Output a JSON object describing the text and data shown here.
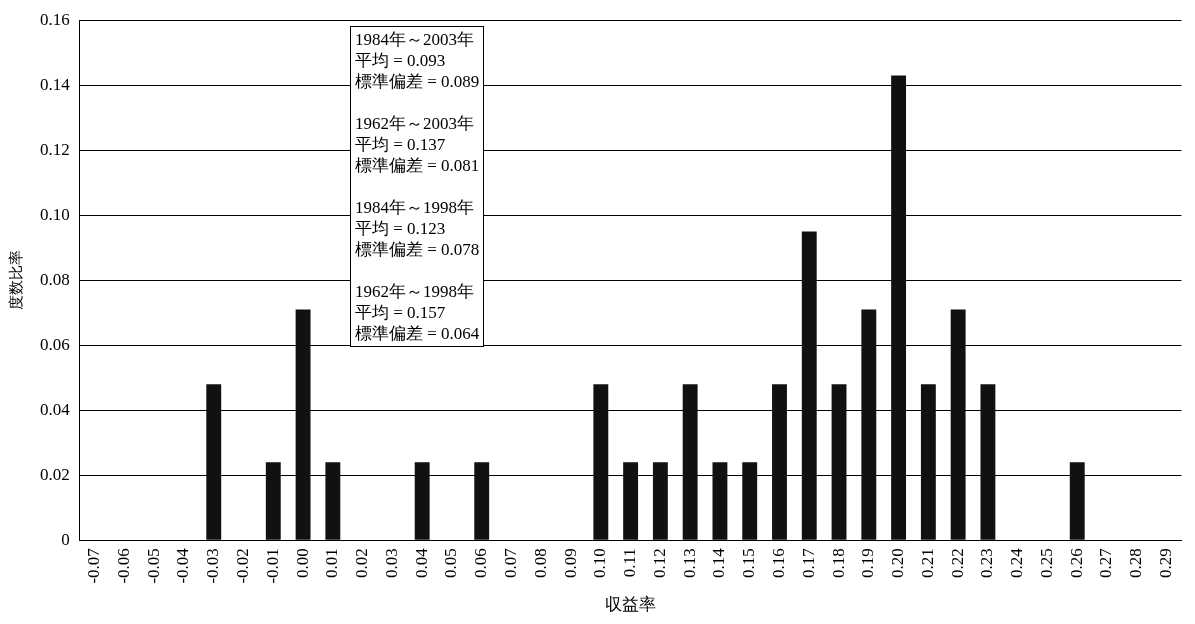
{
  "chart_data": {
    "type": "bar",
    "xlabel": "収益率",
    "ylabel": "度数比率",
    "categories": [
      "-0.07",
      "-0.06",
      "-0.05",
      "-0.04",
      "-0.03",
      "-0.02",
      "-0.01",
      "0.00",
      "0.01",
      "0.02",
      "0.03",
      "0.04",
      "0.05",
      "0.06",
      "0.07",
      "0.08",
      "0.09",
      "0.10",
      "0.11",
      "0.12",
      "0.13",
      "0.14",
      "0.15",
      "0.16",
      "0.17",
      "0.18",
      "0.19",
      "0.20",
      "0.21",
      "0.22",
      "0.23",
      "0.24",
      "0.25",
      "0.26",
      "0.27",
      "0.28",
      "0.29"
    ],
    "values": [
      0,
      0,
      0,
      0,
      0.048,
      0,
      0.024,
      0.071,
      0.024,
      0,
      0,
      0.024,
      0,
      0.024,
      0,
      0,
      0,
      0.048,
      0.024,
      0.024,
      0.048,
      0.024,
      0.024,
      0.048,
      0.095,
      0.048,
      0.071,
      0.143,
      0.048,
      0.071,
      0.048,
      0,
      0,
      0.024,
      0,
      0,
      0
    ],
    "color": "#111111",
    "ylim": [
      0,
      0.16
    ],
    "yticks": [
      {
        "value": 0,
        "label": "0"
      },
      0.02,
      0.04,
      0.06,
      0.08,
      {
        "value": 0.1,
        "label": "0.10"
      },
      0.12,
      0.14,
      0.16
    ],
    "grid": "y",
    "legend": false,
    "annotations": [
      "1984年～2003年",
      "平均 = 0.093",
      "標準偏差 = 0.089",
      "1962年～2003年",
      "平均 = 0.137",
      "標準偏差 = 0.081",
      "1984年～1998年",
      "平均 = 0.123",
      "標準偏差 = 0.078",
      "1962年～1998年",
      "平均 = 0.157",
      "標準偏差 = 0.064"
    ]
  }
}
